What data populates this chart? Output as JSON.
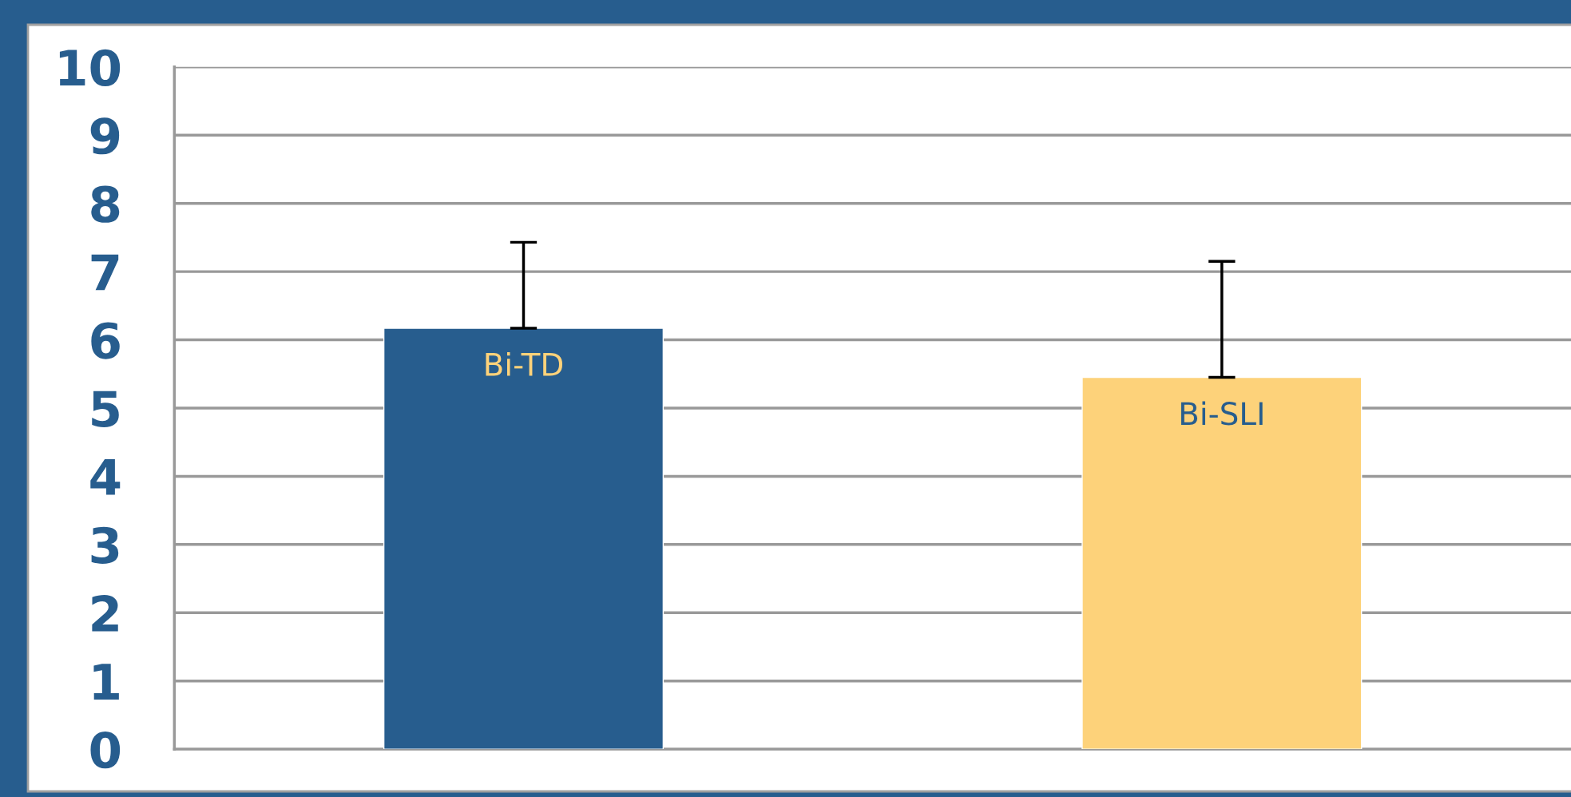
{
  "chart_data": {
    "type": "bar",
    "categories": [
      "Bi-TD",
      "Bi-SLI"
    ],
    "values": [
      6.17,
      5.45
    ],
    "errors": [
      [
        6.17,
        7.43
      ],
      [
        5.45,
        7.15
      ]
    ],
    "colors": [
      "#275d8e",
      "#fdd27a"
    ],
    "ylim": [
      0,
      10
    ],
    "yticks": [
      0,
      1,
      2,
      3,
      4,
      5,
      6,
      7,
      8,
      9,
      10
    ],
    "grid": "y",
    "legend": false
  }
}
